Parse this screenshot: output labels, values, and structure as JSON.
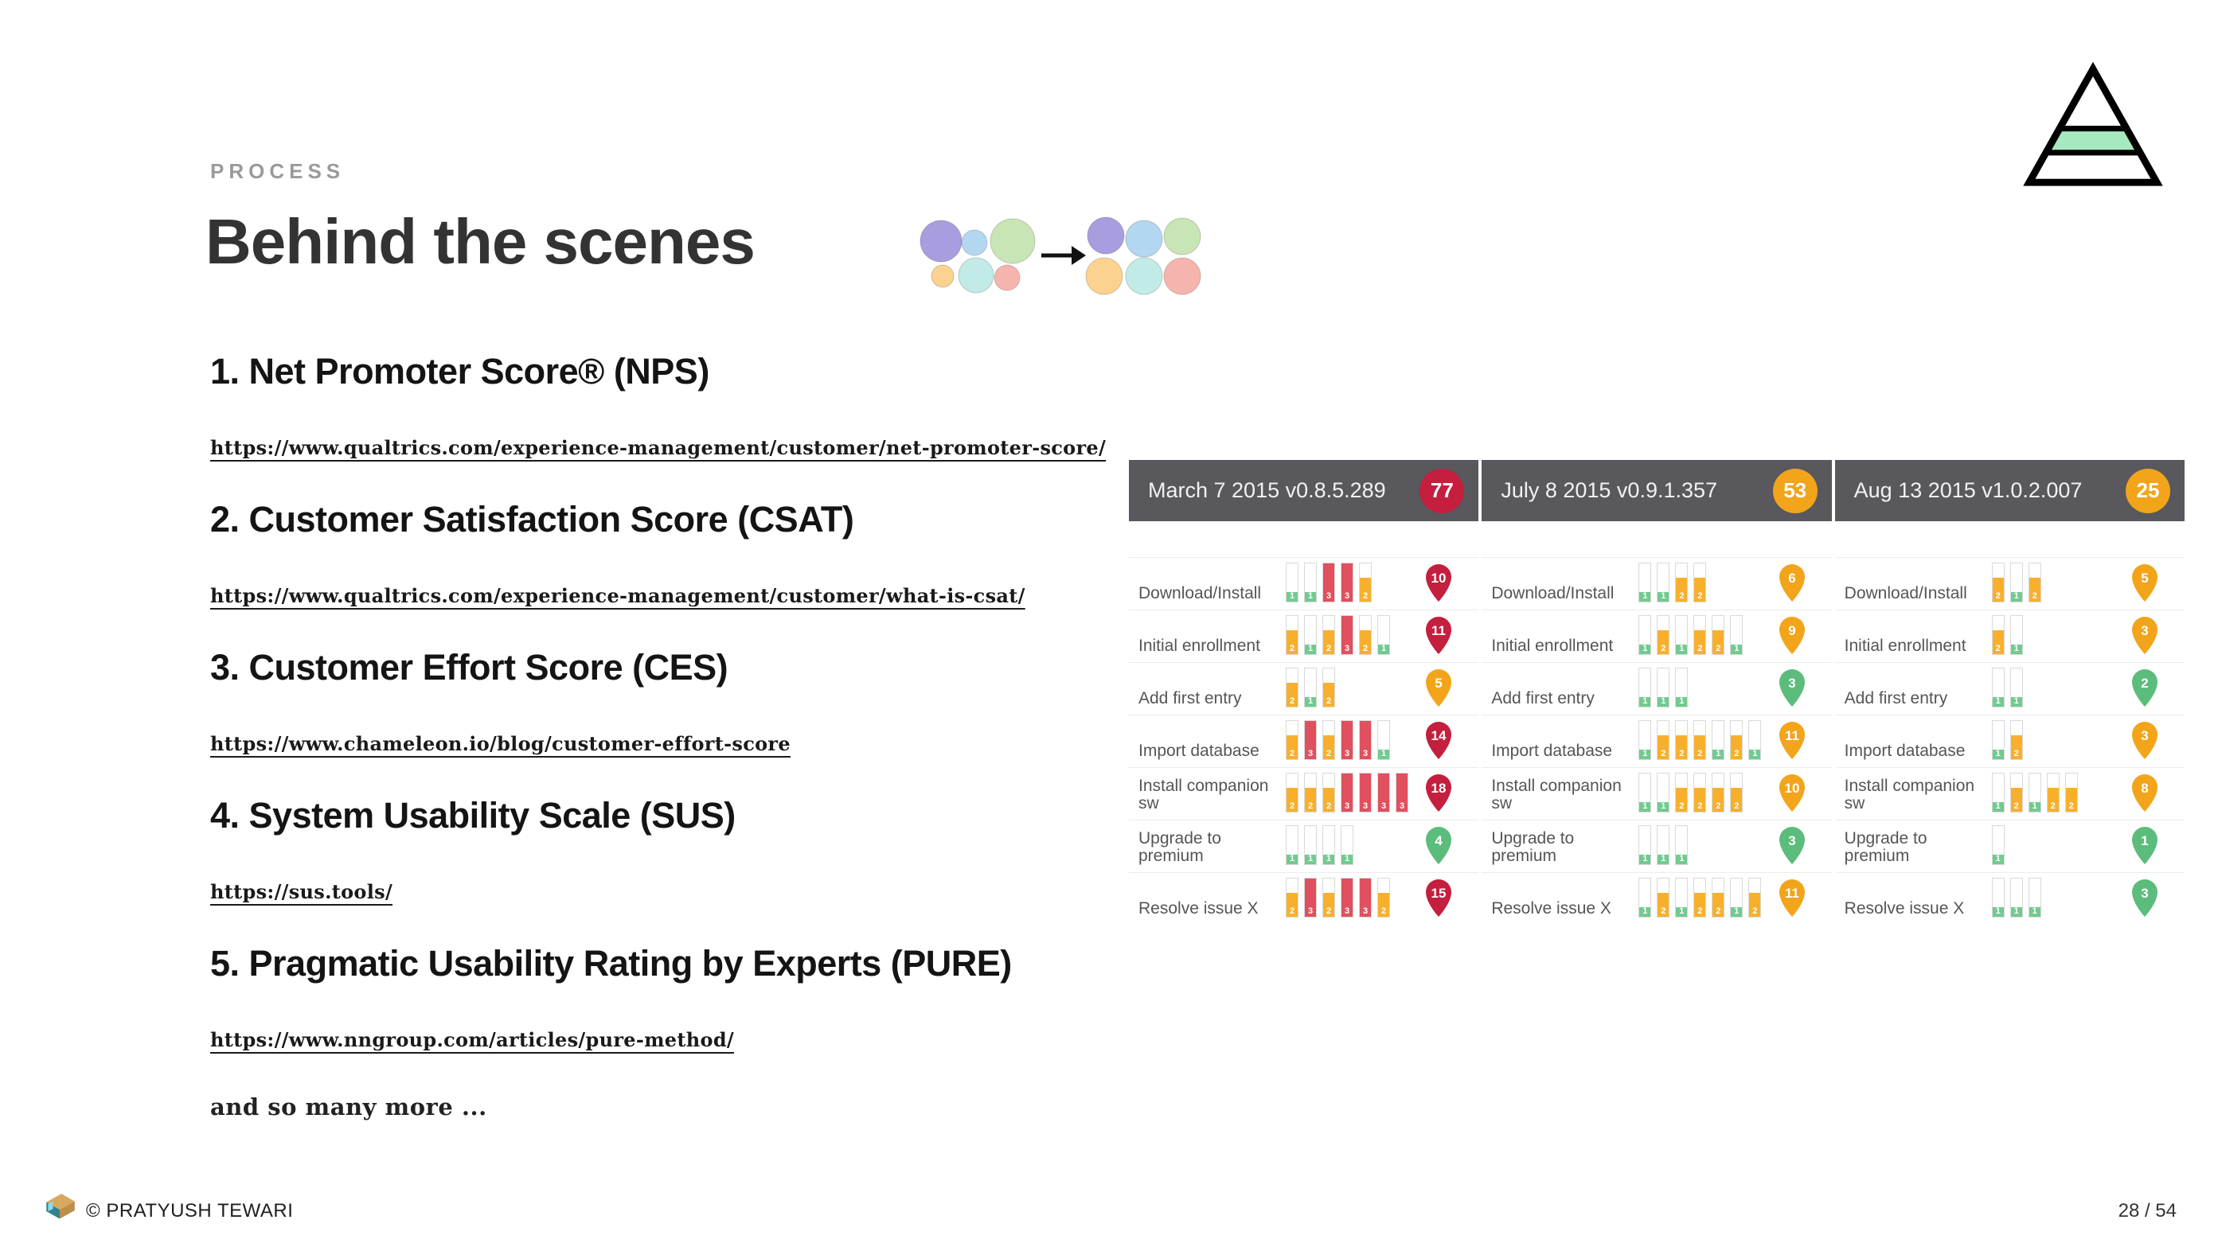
{
  "slide": {
    "eyebrow": "PROCESS",
    "title": "Behind the scenes",
    "more_text": "and so many more ...",
    "footer": {
      "copyright": "© PRATYUSH TEWARI",
      "page": "28 / 54"
    }
  },
  "items": [
    {
      "heading": "1. Net Promoter Score® (NPS)",
      "url": "https://www.qualtrics.com/experience-management/customer/net-promoter-score/"
    },
    {
      "heading": "2. Customer Satisfaction Score (CSAT)",
      "url": "https://www.qualtrics.com/experience-management/customer/what-is-csat/"
    },
    {
      "heading": "3. Customer Effort Score (CES)",
      "url": "https://www.chameleon.io/blog/customer-effort-score"
    },
    {
      "heading": "4. System Usability Scale (SUS)",
      "url": "https://sus.tools/"
    },
    {
      "heading": "5. Pragmatic Usability Rating by Experts (PURE)",
      "url": "https://www.nngroup.com/articles/pure-method/"
    }
  ],
  "colors": {
    "header_bg": "#58585d",
    "header_text": "#f2f2f2",
    "pin_red": "#c41f3e",
    "pin_yellow": "#f2a41b",
    "pin_green": "#5cbc7c",
    "bar_red": "#e1505e",
    "bar_yellow": "#f8b02c",
    "bar_green": "#72ca90",
    "pyramid_band_green": "#a7e9bf"
  },
  "chart_data": {
    "type": "table",
    "title": "PURE task ratings by release",
    "rating_scale": {
      "1": "green (easy)",
      "2": "yellow (moderate)",
      "3": "red (difficult)"
    },
    "columns": [
      {
        "title": "March 7 2015 v0.8.5.289",
        "score": 77,
        "score_level": "red",
        "rows": [
          {
            "task": "Download/Install",
            "ratings": [
              1,
              1,
              3,
              3,
              2
            ],
            "total": 10,
            "level": "red"
          },
          {
            "task": "Initial enrollment",
            "ratings": [
              2,
              1,
              2,
              3,
              2,
              1
            ],
            "total": 11,
            "level": "red"
          },
          {
            "task": "Add first entry",
            "ratings": [
              2,
              1,
              2
            ],
            "total": 5,
            "level": "yellow"
          },
          {
            "task": "Import database",
            "ratings": [
              2,
              3,
              2,
              3,
              3,
              1
            ],
            "total": 14,
            "level": "red"
          },
          {
            "task": "Install companion sw",
            "ratings": [
              2,
              2,
              2,
              3,
              3,
              3,
              3
            ],
            "total": 18,
            "level": "red"
          },
          {
            "task": "Upgrade to premium",
            "ratings": [
              1,
              1,
              1,
              1
            ],
            "total": 4,
            "level": "green"
          },
          {
            "task": "Resolve issue X",
            "ratings": [
              2,
              3,
              2,
              3,
              3,
              2
            ],
            "total": 15,
            "level": "red"
          }
        ]
      },
      {
        "title": "July 8 2015 v0.9.1.357",
        "score": 53,
        "score_level": "yellow",
        "rows": [
          {
            "task": "Download/Install",
            "ratings": [
              1,
              1,
              2,
              2
            ],
            "total": 6,
            "level": "yellow"
          },
          {
            "task": "Initial enrollment",
            "ratings": [
              1,
              2,
              1,
              2,
              2,
              1
            ],
            "total": 9,
            "level": "yellow"
          },
          {
            "task": "Add first entry",
            "ratings": [
              1,
              1,
              1
            ],
            "total": 3,
            "level": "green"
          },
          {
            "task": "Import database",
            "ratings": [
              1,
              2,
              2,
              2,
              1,
              2,
              1
            ],
            "total": 11,
            "level": "yellow"
          },
          {
            "task": "Install companion sw",
            "ratings": [
              1,
              1,
              2,
              2,
              2,
              2
            ],
            "total": 10,
            "level": "yellow"
          },
          {
            "task": "Upgrade to premium",
            "ratings": [
              1,
              1,
              1
            ],
            "total": 3,
            "level": "green"
          },
          {
            "task": "Resolve issue X",
            "ratings": [
              1,
              2,
              1,
              2,
              2,
              1,
              2
            ],
            "total": 11,
            "level": "yellow"
          }
        ]
      },
      {
        "title": "Aug 13 2015  v1.0.2.007",
        "score": 25,
        "score_level": "yellow",
        "rows": [
          {
            "task": "Download/Install",
            "ratings": [
              2,
              1,
              2
            ],
            "total": 5,
            "level": "yellow"
          },
          {
            "task": "Initial enrollment",
            "ratings": [
              2,
              1
            ],
            "total": 3,
            "level": "yellow"
          },
          {
            "task": "Add first entry",
            "ratings": [
              1,
              1
            ],
            "total": 2,
            "level": "green"
          },
          {
            "task": "Import database",
            "ratings": [
              1,
              2
            ],
            "total": 3,
            "level": "yellow"
          },
          {
            "task": "Install companion sw",
            "ratings": [
              1,
              2,
              1,
              2,
              2
            ],
            "total": 8,
            "level": "yellow"
          },
          {
            "task": "Upgrade to premium",
            "ratings": [
              1
            ],
            "total": 1,
            "level": "green"
          },
          {
            "task": "Resolve issue X",
            "ratings": [
              1,
              1,
              1
            ],
            "total": 3,
            "level": "green"
          }
        ]
      }
    ]
  }
}
